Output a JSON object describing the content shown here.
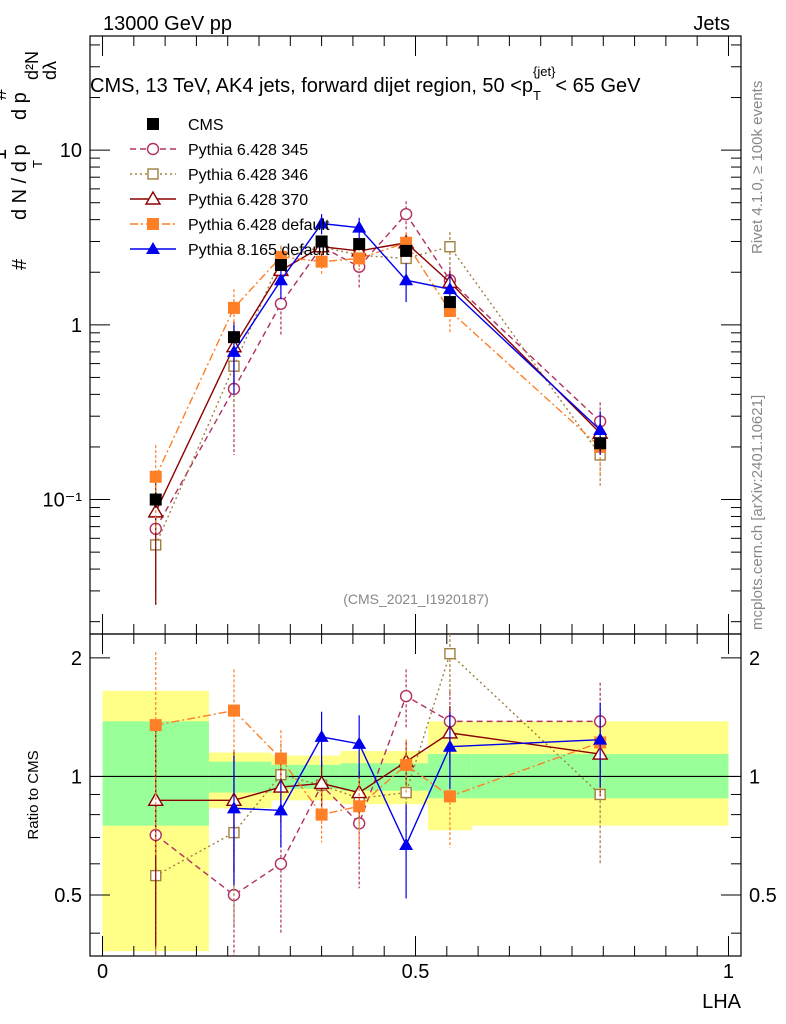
{
  "header": {
    "left": "13000 GeV pp",
    "right": "Jets"
  },
  "side_labels": {
    "rivet": "Rivet 4.1.0, ≥ 100k events",
    "mcplots": "mcplots.cern.ch [arXiv:2401.10621]"
  },
  "chart_data": {
    "type": "scatter",
    "title": "CMS, 13 TeV, AK4 jets, forward dijet region, 50 <p_T^{jet}< 65 GeV",
    "title_parts": {
      "main": "CMS, 13 TeV, AK4 jets, forward dijet region, 50 <p",
      "sub": "T",
      "sup": "{jet}",
      "tail": "< 65 GeV"
    },
    "ylabel_parts": {
      "one": "1",
      "frac_num": "#",
      "frac_den": "d N / d p",
      "sub_T": "T",
      "d2N": "d²N",
      "dp": "d p",
      "dlambda": "dλ",
      "hash": "#"
    },
    "xlabel": "LHA",
    "analysis_id": "(CMS_2021_I1920187)",
    "x_ticks": [
      "0",
      "0.5",
      "1"
    ],
    "x_tick_values": [
      0,
      0.5,
      1
    ],
    "xlim": [
      -0.02,
      1.02
    ],
    "main_panel": {
      "yscale": "log",
      "ylim": [
        0.017,
        45
      ],
      "y_tick_labels": [
        {
          "value": 10,
          "text": "10"
        },
        {
          "value": 1,
          "text": "1"
        },
        {
          "value": 0.1,
          "text": "10⁻¹"
        }
      ]
    },
    "ratio_panel": {
      "ylabel": "Ratio to CMS",
      "ylim": [
        0.35,
        2.3
      ],
      "y_tick_labels": [
        {
          "value": 0.5,
          "text": "0.5"
        },
        {
          "value": 1,
          "text": "1"
        },
        {
          "value": 2,
          "text": "2"
        }
      ],
      "bands": [
        {
          "x0": 0.0,
          "x1": 0.17,
          "inner": [
            0.75,
            1.38
          ],
          "outer": [
            0.36,
            1.65
          ]
        },
        {
          "x0": 0.17,
          "x1": 0.27,
          "inner": [
            0.91,
            1.09
          ],
          "outer": [
            0.83,
            1.15
          ]
        },
        {
          "x0": 0.27,
          "x1": 0.38,
          "inner": [
            0.93,
            1.07
          ],
          "outer": [
            0.87,
            1.13
          ]
        },
        {
          "x0": 0.38,
          "x1": 0.52,
          "inner": [
            0.92,
            1.08
          ],
          "outer": [
            0.85,
            1.16
          ]
        },
        {
          "x0": 0.52,
          "x1": 0.59,
          "inner": [
            0.88,
            1.14
          ],
          "outer": [
            0.73,
            1.38
          ]
        },
        {
          "x0": 0.59,
          "x1": 1.0,
          "inner": [
            0.88,
            1.14
          ],
          "outer": [
            0.75,
            1.38
          ]
        }
      ]
    },
    "x": [
      0.085,
      0.21,
      0.285,
      0.35,
      0.41,
      0.485,
      0.555,
      0.795
    ],
    "series": [
      {
        "name": "CMS",
        "color": "#000000",
        "marker": "square-filled",
        "dash": "none",
        "values": [
          0.1,
          0.85,
          2.2,
          3.0,
          2.9,
          2.65,
          1.35,
          0.21
        ],
        "errors": [
          0.01,
          0.05,
          0.1,
          0.15,
          0.15,
          0.12,
          0.08,
          0.02
        ]
      },
      {
        "name": "Pythia 6.428 345",
        "color": "#b03060",
        "marker": "circle-open",
        "dash": "6,4",
        "values": [
          0.068,
          0.43,
          1.32,
          2.8,
          2.15,
          4.3,
          1.8,
          0.28
        ],
        "errors": [
          0.04,
          0.25,
          0.45,
          0.4,
          0.55,
          0.8,
          0.35,
          0.08
        ],
        "ratio": [
          0.71,
          0.5,
          0.6,
          0.95,
          0.76,
          1.6,
          1.38,
          1.38
        ],
        "ratio_err": [
          0.45,
          0.3,
          0.2,
          0.14,
          0.24,
          0.27,
          0.26,
          0.35
        ]
      },
      {
        "name": "Pythia 6.428 346",
        "color": "#a08040",
        "marker": "square-open",
        "dash": "2,3",
        "values": [
          0.055,
          0.58,
          2.4,
          2.8,
          2.5,
          2.4,
          2.8,
          0.18
        ],
        "errors": [
          0.03,
          0.25,
          0.4,
          0.4,
          0.4,
          0.4,
          0.6,
          0.06
        ],
        "ratio": [
          0.56,
          0.72,
          1.01,
          0.95,
          0.88,
          0.91,
          2.05,
          0.9
        ],
        "ratio_err": [
          0.35,
          0.3,
          0.2,
          0.15,
          0.15,
          0.15,
          0.45,
          0.3
        ]
      },
      {
        "name": "Pythia 6.428 370",
        "color": "#8b0000",
        "marker": "triangle-open",
        "dash": "none",
        "values": [
          0.085,
          0.75,
          2.05,
          2.8,
          2.65,
          2.95,
          1.75,
          0.24
        ],
        "errors": [
          0.06,
          0.3,
          0.4,
          0.35,
          0.35,
          0.4,
          0.3,
          0.06
        ],
        "ratio": [
          0.87,
          0.87,
          0.94,
          0.96,
          0.91,
          1.09,
          1.29,
          1.14
        ],
        "ratio_err": [
          0.5,
          0.3,
          0.18,
          0.12,
          0.12,
          0.15,
          0.22,
          0.25
        ]
      },
      {
        "name": "Pythia 6.428 default",
        "color": "#ff7f27",
        "marker": "square-filled",
        "dash": "8,3,2,3",
        "values": [
          0.135,
          1.25,
          2.45,
          2.3,
          2.4,
          2.95,
          1.2,
          0.2
        ],
        "errors": [
          0.07,
          0.35,
          0.4,
          0.35,
          0.35,
          0.45,
          0.3,
          0.06
        ],
        "ratio": [
          1.35,
          1.47,
          1.11,
          0.8,
          0.84,
          1.07,
          0.89,
          1.22
        ],
        "ratio_err": [
          0.72,
          0.4,
          0.2,
          0.12,
          0.18,
          0.17,
          0.23,
          0.32
        ]
      },
      {
        "name": "Pythia 8.165 default",
        "color": "#0000ee",
        "marker": "triangle-filled",
        "dash": "none",
        "values": [
          null,
          0.7,
          1.8,
          3.8,
          3.6,
          1.8,
          1.6,
          0.25
        ],
        "errors": [
          null,
          0.3,
          0.4,
          0.5,
          0.5,
          0.45,
          0.35,
          0.07
        ],
        "ratio": [
          null,
          0.83,
          0.82,
          1.26,
          1.21,
          0.67,
          1.19,
          1.24
        ],
        "ratio_err": [
          null,
          0.3,
          0.16,
          0.2,
          0.22,
          0.18,
          0.26,
          0.3
        ]
      }
    ]
  }
}
